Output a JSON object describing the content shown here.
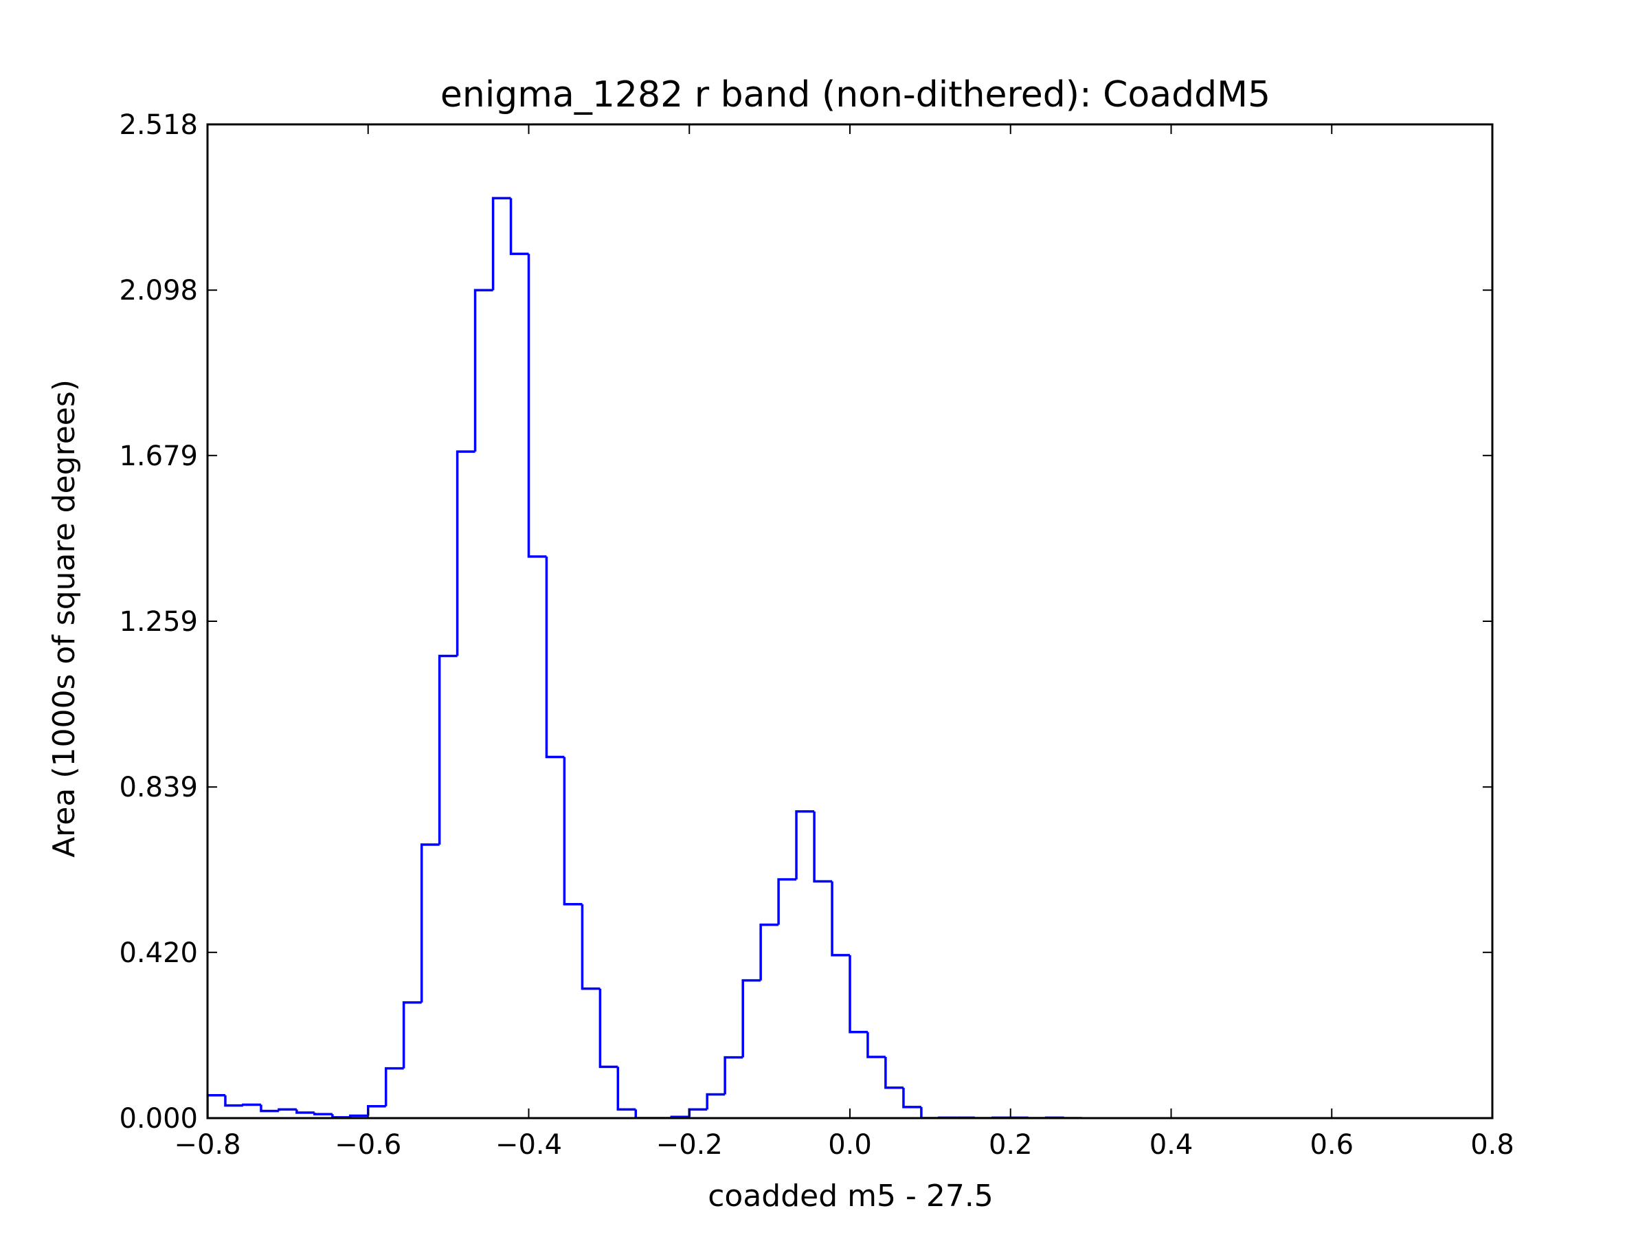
{
  "chart_data": {
    "type": "histogram",
    "title": "enigma_1282 r band (non-dithered): CoaddM5",
    "xlabel": "coadded m5 - 27.5",
    "ylabel": "Area (1000s of square degrees)",
    "xlim": [
      -0.8,
      0.8
    ],
    "ylim": [
      0.0,
      2.518
    ],
    "x_ticks": [
      -0.8,
      -0.6,
      -0.4,
      -0.2,
      0.0,
      0.2,
      0.4,
      0.6,
      0.8
    ],
    "x_tick_labels": [
      "−0.8",
      "−0.6",
      "−0.4",
      "−0.2",
      "0.0",
      "0.2",
      "0.4",
      "0.6",
      "0.8"
    ],
    "y_ticks": [
      0.0,
      0.42,
      0.839,
      1.259,
      1.679,
      2.098,
      2.518
    ],
    "y_tick_labels": [
      "0.000",
      "0.420",
      "0.839",
      "1.259",
      "1.679",
      "2.098",
      "2.518"
    ],
    "grid": false,
    "line_color": "#0000ff",
    "bin_width": 0.0222,
    "series": [
      {
        "bin_edges": [
          -0.8,
          -0.7778,
          -0.7556,
          -0.7333,
          -0.7111,
          -0.6889,
          -0.6667,
          -0.6444,
          -0.6222,
          -0.6,
          -0.5778,
          -0.5556,
          -0.5333,
          -0.5111,
          -0.4889,
          -0.4667,
          -0.4444,
          -0.4222,
          -0.4,
          -0.3778,
          -0.3556,
          -0.3333,
          -0.3111,
          -0.2889,
          -0.2667,
          -0.2444,
          -0.2222,
          -0.2,
          -0.1778,
          -0.1556,
          -0.1333,
          -0.1111,
          -0.0889,
          -0.0667,
          -0.0444,
          -0.0222,
          0.0,
          0.0222,
          0.0444,
          0.0667,
          0.0889,
          0.1111,
          0.1333,
          0.1556,
          0.1778,
          0.2,
          0.2222,
          0.2444,
          0.2667,
          0.2889
        ],
        "counts": [
          0.058,
          0.032,
          0.034,
          0.018,
          0.022,
          0.014,
          0.01,
          0.002,
          0.006,
          0.03,
          0.126,
          0.293,
          0.693,
          1.171,
          1.689,
          2.098,
          2.331,
          2.19,
          1.423,
          0.915,
          0.542,
          0.328,
          0.13,
          0.022,
          0.0,
          0.0,
          0.003,
          0.022,
          0.06,
          0.154,
          0.349,
          0.49,
          0.605,
          0.777,
          0.6,
          0.413,
          0.218,
          0.155,
          0.077,
          0.028,
          0.0,
          0.001,
          0.001,
          0.0,
          0.001,
          0.001,
          0.0,
          0.001,
          0.0
        ]
      }
    ]
  }
}
